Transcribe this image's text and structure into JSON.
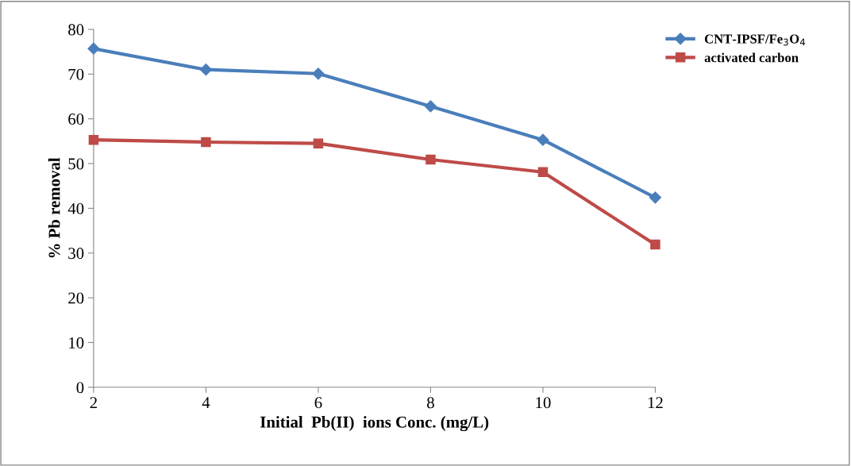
{
  "chart_data": {
    "type": "line",
    "xlabel": "Initial  Pb(II)  ions Conc. (mg/L)",
    "ylabel": "% Pb removal",
    "x": [
      2,
      4,
      6,
      8,
      10,
      12
    ],
    "series": [
      {
        "name": "CNT-IPSF/Fe$_{3}$O$_{4}$",
        "color": "#4a7ebb",
        "marker": "diamond",
        "values": [
          75.7,
          71.0,
          70.1,
          62.8,
          55.3,
          42.4
        ]
      },
      {
        "name": "activated carbon",
        "color": "#be4b48",
        "marker": "square",
        "values": [
          55.3,
          54.8,
          54.5,
          50.9,
          48.1,
          31.9
        ]
      }
    ],
    "xlim": [
      2,
      12
    ],
    "xticks": [
      2,
      4,
      6,
      8,
      10,
      12
    ],
    "ylim": [
      0,
      80
    ],
    "yticks": [
      0,
      10,
      20,
      30,
      40,
      50,
      60,
      70,
      80
    ],
    "legend": "top right",
    "line_style": "solid"
  }
}
